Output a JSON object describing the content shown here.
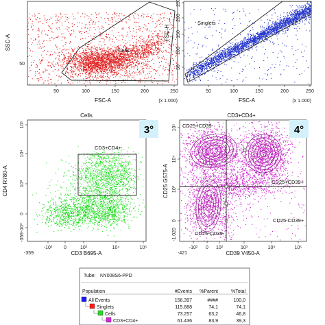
{
  "chart_data": [
    {
      "type": "scatter",
      "xlabel": "FSC-A",
      "ylabel": "SSC-A",
      "x_unit": "(x 1.000)",
      "x_ticks": [
        "50",
        "100",
        "150",
        "200",
        "250"
      ],
      "y_ticks": [
        "50"
      ],
      "gates": [
        {
          "name": "Cells"
        }
      ],
      "color": "#e02020"
    },
    {
      "type": "scatter",
      "xlabel": "FSC-A",
      "ylabel": "FSC-H",
      "x_unit": "(x 1.000)",
      "x_ticks": [
        "50",
        "100",
        "150",
        "200",
        "250"
      ],
      "y_ticks": [
        "50",
        "100",
        "150",
        "200",
        "250"
      ],
      "gates": [
        {
          "name": "Singlets"
        }
      ],
      "color": "#2233cc"
    },
    {
      "type": "scatter",
      "title": "Cells",
      "badge": "3°",
      "xlabel": "CD3 B695-A",
      "ylabel": "CD4 R780-A",
      "x_ticks": [
        "-10³",
        "0",
        "10³",
        "10⁴",
        "10⁵"
      ],
      "x_tick_extra": "-359",
      "y_ticks": [
        "-10³",
        "0",
        "10³",
        "10⁴",
        "10⁵"
      ],
      "y_tick_extra": "-359",
      "gates": [
        {
          "name": "CD3+CD4+"
        }
      ],
      "color": "#22dd22"
    },
    {
      "type": "scatter",
      "title": "CD3+CD4+",
      "badge": "4°",
      "xlabel": "CD39 V450-A",
      "ylabel": "CD25 G575-A",
      "x_ticks": [
        "-10²",
        "0",
        "10²",
        "10³",
        "10⁴",
        "10⁵"
      ],
      "x_tick_extra": "-421",
      "y_ticks": [
        "0",
        "10³",
        "10⁴",
        "10⁵"
      ],
      "y_tick_extra": "-1.020",
      "gates": [
        {
          "name": "CD25+CD39-"
        },
        {
          "name": "CD25+CD39+"
        },
        {
          "name": "CD25-CD39+"
        },
        {
          "name": "CD25-CD39-"
        }
      ],
      "color": "#cc22cc"
    },
    {
      "type": "table",
      "tube": "NY008S6-PPD",
      "columns": [
        "Population",
        "#Events",
        "%Parent",
        "%Total"
      ],
      "rows": [
        {
          "name": "All Events",
          "events": "156.397",
          "parent": "####",
          "total": "100,0",
          "color": "#1a1aff",
          "level": 0
        },
        {
          "name": "Singlets",
          "events": "115.888",
          "parent": "74,1",
          "total": "74,1",
          "color": "#ff1a1a",
          "level": 1
        },
        {
          "name": "Cells",
          "events": "73.257",
          "parent": "63,2",
          "total": "46,8",
          "color": "#22dd22",
          "level": 2
        },
        {
          "name": "CD3+CD4+",
          "events": "61.436",
          "parent": "83,9",
          "total": "39,3",
          "color": "#dd22dd",
          "level": 3
        }
      ]
    }
  ]
}
